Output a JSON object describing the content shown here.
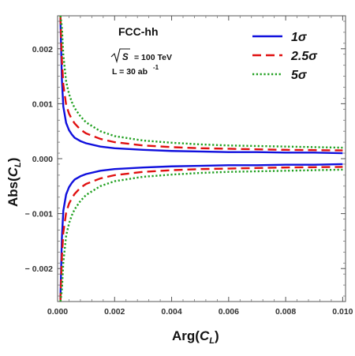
{
  "chart_data": {
    "type": "line",
    "title": "",
    "annotations": {
      "collider": "FCC-hh",
      "energy_symbol": "S",
      "energy_value": "= 100 TeV",
      "lumi_prefix": "L = 30 ab",
      "lumi_exp": "-1"
    },
    "xlabel": {
      "main": "Arg(",
      "var": "C",
      "sub": "L",
      "close": ")"
    },
    "ylabel": {
      "main": "Abs(",
      "var": "C",
      "sub": "L",
      "close": ")"
    },
    "xlim": [
      0,
      0.0101
    ],
    "ylim": [
      -0.0026,
      0.0026
    ],
    "xticks": [
      0.0,
      0.002,
      0.004,
      0.006,
      0.008,
      0.01
    ],
    "xtick_labels": [
      "0.000",
      "0.002",
      "0.004",
      "0.006",
      "0.008",
      "0.010"
    ],
    "yticks": [
      0.002,
      0.001,
      0.0,
      -0.001,
      -0.002
    ],
    "ytick_labels": [
      "0.002",
      "0.001",
      "0.000",
      "− 0.001",
      "− 0.002"
    ],
    "legend_position": "top-right",
    "series": [
      {
        "name": "1σ",
        "color": "#1010dd",
        "dash": "solid",
        "x": [
          0.0001,
          0.00015,
          0.0002,
          0.0003,
          0.0004,
          0.0005,
          0.0006,
          0.0008,
          0.001,
          0.0015,
          0.002,
          0.003,
          0.004,
          0.005,
          0.006,
          0.007,
          0.008,
          0.009,
          0.01
        ],
        "upper": [
          0.00255,
          0.00145,
          0.00095,
          0.00065,
          0.00052,
          0.00044,
          0.00038,
          0.00032,
          0.00028,
          0.00022,
          0.00019,
          0.00016,
          0.00014,
          0.00013,
          0.00012,
          0.00012,
          0.00011,
          0.00011,
          0.0001
        ],
        "lower": [
          -0.00255,
          -0.00145,
          -0.00095,
          -0.00065,
          -0.00052,
          -0.00044,
          -0.00038,
          -0.00032,
          -0.00028,
          -0.00022,
          -0.00019,
          -0.00016,
          -0.00014,
          -0.00013,
          -0.00012,
          -0.00012,
          -0.00011,
          -0.00011,
          -0.0001
        ]
      },
      {
        "name": "2.5σ",
        "color": "#e01010",
        "dash": "long-dash",
        "x": [
          0.0001,
          0.00015,
          0.0002,
          0.0003,
          0.0004,
          0.0005,
          0.0006,
          0.0008,
          0.001,
          0.0015,
          0.002,
          0.003,
          0.004,
          0.005,
          0.006,
          0.007,
          0.008,
          0.009,
          0.01
        ],
        "upper": [
          0.0026,
          0.0018,
          0.00135,
          0.00098,
          0.00082,
          0.00072,
          0.00064,
          0.00053,
          0.00046,
          0.00036,
          0.0003,
          0.00024,
          0.00021,
          0.00019,
          0.00018,
          0.00017,
          0.00016,
          0.000155,
          0.00015
        ],
        "lower": [
          -0.0026,
          -0.0018,
          -0.00135,
          -0.00098,
          -0.00082,
          -0.00072,
          -0.00064,
          -0.00053,
          -0.00046,
          -0.00036,
          -0.0003,
          -0.00024,
          -0.00021,
          -0.00019,
          -0.00018,
          -0.00017,
          -0.00016,
          -0.000155,
          -0.00015
        ]
      },
      {
        "name": "5σ",
        "color": "#20a020",
        "dash": "dotted",
        "x": [
          0.0001,
          0.00015,
          0.0002,
          0.0003,
          0.0004,
          0.0005,
          0.0006,
          0.0008,
          0.001,
          0.0015,
          0.002,
          0.003,
          0.004,
          0.005,
          0.006,
          0.007,
          0.008,
          0.009,
          0.01
        ],
        "upper": [
          0.0026,
          0.0024,
          0.0019,
          0.0014,
          0.00118,
          0.00103,
          0.00092,
          0.00077,
          0.00066,
          0.0005,
          0.00041,
          0.00033,
          0.00029,
          0.00026,
          0.00024,
          0.00023,
          0.00022,
          0.00021,
          0.0002
        ],
        "lower": [
          -0.0026,
          -0.0024,
          -0.0019,
          -0.0014,
          -0.00118,
          -0.00103,
          -0.00092,
          -0.00077,
          -0.00066,
          -0.0005,
          -0.00041,
          -0.00033,
          -0.00029,
          -0.00026,
          -0.00024,
          -0.00023,
          -0.00022,
          -0.00021,
          -0.0002
        ]
      }
    ]
  }
}
